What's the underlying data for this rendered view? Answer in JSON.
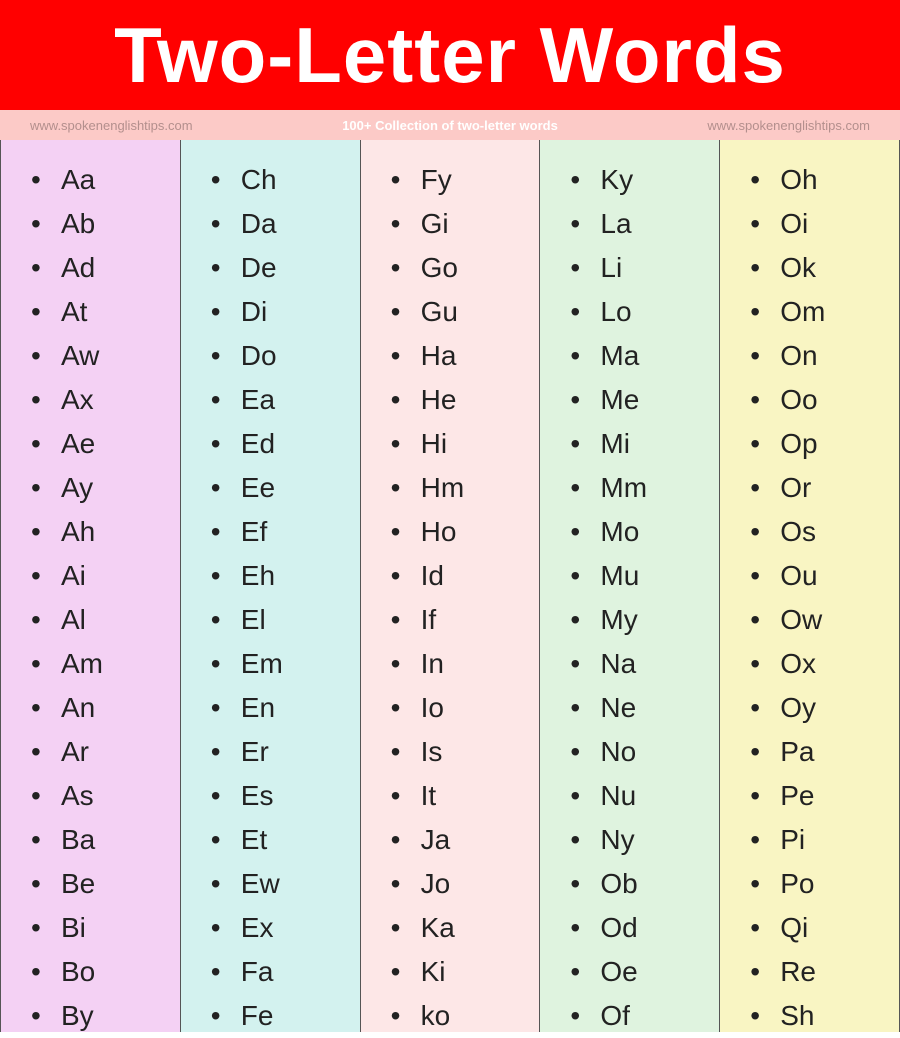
{
  "header": {
    "title": "Two-Letter Words",
    "title_color": "#ffffff",
    "title_bg": "#ff0000",
    "title_fontsize": "78px"
  },
  "subheader": {
    "left": "www.spokenenglishtips.com",
    "center": "100+ Collection of two-letter words",
    "right": "www.spokenenglishtips.com",
    "bg": "#fccac7",
    "left_color": "#b38f8d",
    "center_color": "#ffffff",
    "right_color": "#b38f8d"
  },
  "columns": [
    {
      "bg": "#f4d1f4",
      "items": [
        "Aa",
        "Ab",
        "Ad",
        "At",
        "Aw",
        "Ax",
        "Ae",
        "Ay",
        "Ah",
        "Ai",
        "Al",
        "Am",
        "An",
        "Ar",
        "As",
        "Ba",
        "Be",
        "Bi",
        "Bo",
        "By"
      ]
    },
    {
      "bg": "#d3f2ef",
      "items": [
        "Ch",
        "Da",
        "De",
        "Di",
        "Do",
        "Ea",
        "Ed",
        "Ee",
        "Ef",
        "Eh",
        "El",
        "Em",
        "En",
        "Er",
        "Es",
        "Et",
        "Ew",
        "Ex",
        "Fa",
        "Fe"
      ]
    },
    {
      "bg": "#fde7e7",
      "items": [
        "Fy",
        "Gi",
        "Go",
        "Gu",
        "Ha",
        "He",
        "Hi",
        "Hm",
        "Ho",
        "Id",
        "If",
        "In",
        "Io",
        "Is",
        "It",
        "Ja",
        "Jo",
        "Ka",
        "Ki",
        "ko"
      ]
    },
    {
      "bg": "#dff3df",
      "items": [
        "Ky",
        "La",
        "Li",
        "Lo",
        "Ma",
        "Me",
        "Mi",
        "Mm",
        "Mo",
        "Mu",
        "My",
        "Na",
        "Ne",
        "No",
        "Nu",
        "Ny",
        "Ob",
        "Od",
        "Oe",
        "Of"
      ]
    },
    {
      "bg": "#f9f5c3",
      "items": [
        "Oh",
        "Oi",
        "Ok",
        "Om",
        "On",
        "Oo",
        "Op",
        "Or",
        "Os",
        "Ou",
        "Ow",
        "Ox",
        "Oy",
        "Pa",
        "Pe",
        "Pi",
        "Po",
        "Qi",
        "Re",
        "Sh"
      ]
    }
  ]
}
